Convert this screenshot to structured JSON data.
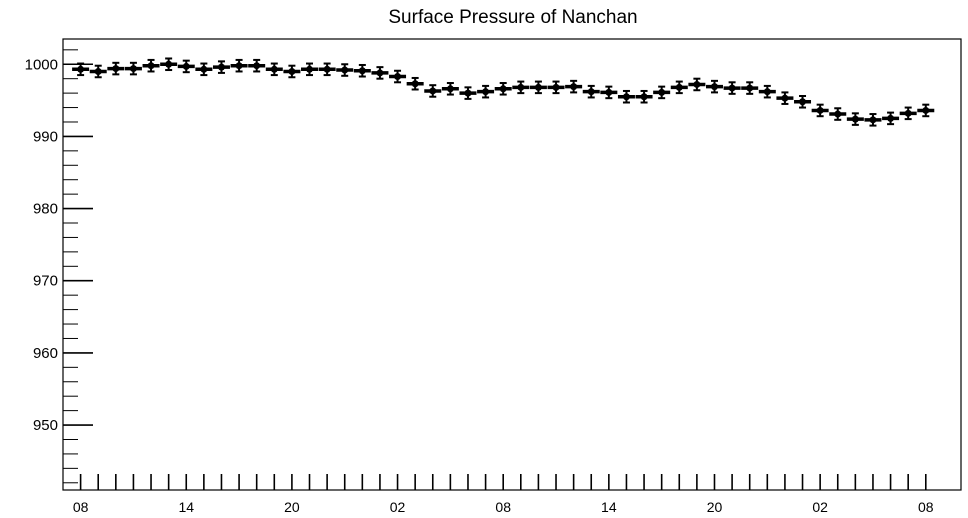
{
  "chart_data": {
    "type": "scatter",
    "title": "Surface Pressure of Nanchan",
    "xlabel": "",
    "ylabel": "",
    "ylim": [
      941,
      1003.5
    ],
    "y_ticks": [
      950,
      960,
      970,
      980,
      990,
      1000
    ],
    "y_tick_labels": [
      "950",
      "960",
      "970",
      "980",
      "990",
      "1000"
    ],
    "x_tick_labels": [
      "08",
      "14",
      "20",
      "02",
      "08",
      "14",
      "20",
      "02",
      "08"
    ],
    "x_tick_hours": [
      0,
      6,
      12,
      18,
      24,
      30,
      36,
      42,
      48
    ],
    "x_range_hours": [
      -1,
      50
    ],
    "error_bar": 0.8,
    "series": [
      {
        "x": [
          0,
          1,
          2,
          3,
          4,
          5,
          6,
          7,
          8,
          9,
          10,
          11,
          12,
          13,
          14,
          15,
          16,
          17,
          18,
          19,
          20,
          21,
          22,
          23,
          24,
          25,
          26,
          27,
          28,
          29,
          30,
          31,
          32,
          33,
          34,
          35,
          36,
          37,
          38,
          39,
          40,
          41,
          42,
          43,
          44,
          45,
          46,
          47,
          48
        ],
        "values": [
          999.3,
          999.0,
          999.4,
          999.4,
          999.8,
          1000.0,
          999.7,
          999.3,
          999.6,
          999.8,
          999.8,
          999.3,
          999.0,
          999.3,
          999.3,
          999.2,
          999.1,
          998.8,
          998.3,
          997.3,
          996.3,
          996.6,
          996.0,
          996.2,
          996.6,
          996.8,
          996.8,
          996.8,
          996.9,
          996.2,
          996.1,
          995.5,
          995.5,
          996.1,
          996.8,
          997.2,
          996.9,
          996.7,
          996.7,
          996.2,
          995.3,
          994.8,
          993.6,
          993.1,
          992.4,
          992.3,
          992.5,
          993.2,
          993.6
        ]
      }
    ],
    "grid": false
  }
}
